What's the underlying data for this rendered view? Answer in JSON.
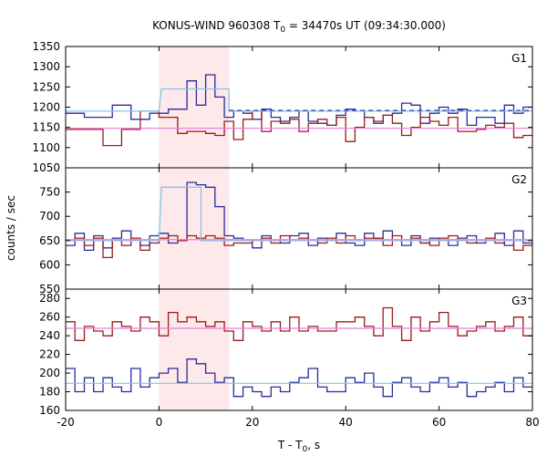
{
  "chart_data": {
    "type": "line",
    "title_main": "KONUS-WIND 960308 T",
    "title_sub": "0",
    "title_rest": " = 34470s UT (09:34:30.000)",
    "xlabel_main": "T - T",
    "xlabel_sub": "0",
    "xlabel_rest": ", s",
    "ylabel": "counts / sec",
    "xlim": [
      -20,
      80
    ],
    "x_ticks": [
      "-20",
      "0",
      "20",
      "40",
      "60",
      "80"
    ],
    "highlight_interval": [
      0,
      15
    ],
    "colors": {
      "blue": "#2b2b9c",
      "red": "#9c1a1a",
      "light_blue": "#7ec8e8",
      "pink": "#e87ee0",
      "highlight": "#fde8ea"
    },
    "panels": [
      {
        "label": "G1",
        "ylim": [
          1050,
          1350
        ],
        "y_ticks": [
          1050,
          1100,
          1150,
          1200,
          1250,
          1300,
          1350
        ],
        "bin_width": 2.0,
        "bins_start": -20,
        "series": [
          {
            "color": "blue",
            "style": "step",
            "values": [
              1185,
              1185,
              1175,
              1175,
              1175,
              1205,
              1205,
              1170,
              1170,
              1185,
              1185,
              1195,
              1195,
              1265,
              1205,
              1280,
              1225,
              1175,
              1190,
              1185,
              1170,
              1195,
              1175,
              1165,
              1175,
              1190,
              1165,
              1160,
              1155,
              1180,
              1195,
              1190,
              1175,
              1160,
              1180,
              1185,
              1210,
              1205,
              1160,
              1185,
              1200,
              1185,
              1195,
              1155,
              1175,
              1175,
              1160,
              1205,
              1185,
              1200
            ]
          },
          {
            "color": "red",
            "style": "step",
            "values": [
              1145,
              1145,
              1145,
              1145,
              1105,
              1105,
              1145,
              1145,
              1190,
              1190,
              1175,
              1175,
              1135,
              1140,
              1140,
              1135,
              1130,
              1165,
              1120,
              1170,
              1190,
              1140,
              1165,
              1160,
              1170,
              1140,
              1160,
              1170,
              1155,
              1175,
              1115,
              1150,
              1175,
              1165,
              1180,
              1160,
              1130,
              1150,
              1175,
              1165,
              1155,
              1175,
              1140,
              1140,
              1145,
              1155,
              1150,
              1160,
              1125,
              1130
            ]
          },
          {
            "color": "light_blue",
            "style": "segments",
            "segments": [
              [
                -20,
                1190
              ],
              [
                0,
                1190
              ],
              [
                0.5,
                1245
              ],
              [
                15,
                1245
              ],
              [
                15,
                1190
              ],
              [
                80,
                1190
              ]
            ]
          },
          {
            "color": "pink",
            "style": "constant",
            "value": 1148
          },
          {
            "color": "blue",
            "style": "dashed",
            "range": [
              15,
              80
            ],
            "value": 1192
          }
        ]
      },
      {
        "label": "G2",
        "ylim": [
          550,
          800
        ],
        "y_ticks": [
          550,
          600,
          650,
          700,
          750
        ],
        "bin_width": 2.0,
        "bins_start": -20,
        "series": [
          {
            "color": "blue",
            "style": "step",
            "values": [
              640,
              665,
              630,
              660,
              635,
              655,
              670,
              650,
              640,
              660,
              665,
              645,
              650,
              770,
              765,
              760,
              720,
              660,
              655,
              650,
              635,
              660,
              650,
              645,
              660,
              665,
              640,
              655,
              650,
              665,
              645,
              640,
              665,
              655,
              670,
              650,
              640,
              660,
              645,
              655,
              650,
              640,
              655,
              660,
              645,
              650,
              665,
              640,
              670,
              645
            ]
          },
          {
            "color": "red",
            "style": "step",
            "values": [
              650,
              655,
              640,
              655,
              615,
              650,
              640,
              655,
              630,
              645,
              655,
              660,
              650,
              660,
              655,
              660,
              655,
              640,
              645,
              645,
              650,
              655,
              645,
              660,
              650,
              655,
              650,
              645,
              655,
              645,
              660,
              650,
              655,
              655,
              640,
              660,
              650,
              655,
              645,
              640,
              655,
              660,
              650,
              645,
              650,
              655,
              645,
              650,
              630,
              640
            ]
          },
          {
            "color": "light_blue",
            "style": "segments",
            "segments": [
              [
                -20,
                650
              ],
              [
                0,
                650
              ],
              [
                0.5,
                760
              ],
              [
                9,
                760
              ],
              [
                9,
                650
              ],
              [
                80,
                650
              ]
            ]
          },
          {
            "color": "pink",
            "style": "constant",
            "value": 652
          }
        ]
      },
      {
        "label": "G3",
        "ylim": [
          160,
          290
        ],
        "y_ticks": [
          160,
          180,
          200,
          220,
          240,
          260,
          280
        ],
        "bin_width": 2.0,
        "bins_start": -20,
        "series": [
          {
            "color": "blue",
            "style": "step",
            "values": [
              205,
              180,
              195,
              180,
              195,
              185,
              180,
              205,
              185,
              195,
              200,
              205,
              190,
              215,
              210,
              200,
              190,
              195,
              175,
              185,
              180,
              175,
              185,
              180,
              190,
              195,
              205,
              185,
              180,
              180,
              195,
              190,
              200,
              185,
              175,
              190,
              195,
              185,
              180,
              190,
              195,
              185,
              190,
              175,
              180,
              185,
              190,
              180,
              195,
              185
            ]
          },
          {
            "color": "red",
            "style": "step",
            "values": [
              255,
              235,
              250,
              245,
              240,
              255,
              250,
              245,
              260,
              255,
              240,
              265,
              255,
              260,
              255,
              250,
              255,
              245,
              235,
              255,
              250,
              245,
              255,
              245,
              260,
              245,
              250,
              245,
              245,
              255,
              255,
              260,
              250,
              240,
              270,
              250,
              235,
              260,
              245,
              255,
              265,
              250,
              240,
              245,
              250,
              255,
              245,
              250,
              260,
              240
            ]
          },
          {
            "color": "light_blue",
            "style": "constant",
            "value": 189
          },
          {
            "color": "pink",
            "style": "constant",
            "value": 248
          }
        ]
      }
    ]
  }
}
